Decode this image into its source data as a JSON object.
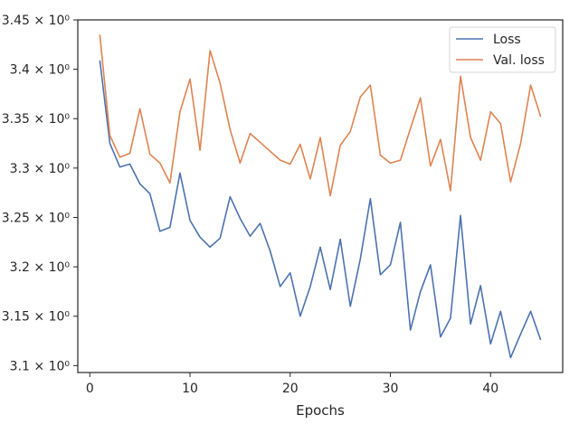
{
  "chart_data": {
    "type": "line",
    "title": "",
    "xlabel": "Epochs",
    "ylabel": "",
    "xlim": [
      -1.2,
      47.2
    ],
    "ylim": [
      3.093,
      3.45
    ],
    "xticks": [
      0,
      10,
      20,
      30,
      40
    ],
    "xtick_labels": [
      "0",
      "10",
      "20",
      "30",
      "40"
    ],
    "yticks": [
      3.1,
      3.15,
      3.2,
      3.25,
      3.3,
      3.35,
      3.4,
      3.45
    ],
    "ytick_labels": [
      "3.1 × 10⁰",
      "3.15 × 10⁰",
      "3.2 × 10⁰",
      "3.25 × 10⁰",
      "3.3 × 10⁰",
      "3.35 × 10⁰",
      "3.4 × 10⁰",
      "3.45 × 10⁰"
    ],
    "grid": false,
    "legend_position": "top-right",
    "x": [
      1,
      2,
      3,
      4,
      5,
      6,
      7,
      8,
      9,
      10,
      11,
      12,
      13,
      14,
      15,
      16,
      17,
      18,
      19,
      20,
      21,
      22,
      23,
      24,
      25,
      26,
      27,
      28,
      29,
      30,
      31,
      32,
      33,
      34,
      35,
      36,
      37,
      38,
      39,
      40,
      41,
      42,
      43,
      44,
      45
    ],
    "series": [
      {
        "name": "Loss",
        "color": "#4c72b0",
        "values": [
          3.409,
          3.325,
          3.301,
          3.304,
          3.284,
          3.274,
          3.236,
          3.24,
          3.295,
          3.247,
          3.23,
          3.22,
          3.229,
          3.271,
          3.249,
          3.231,
          3.244,
          3.216,
          3.18,
          3.194,
          3.15,
          3.18,
          3.22,
          3.177,
          3.228,
          3.16,
          3.208,
          3.269,
          3.192,
          3.202,
          3.245,
          3.136,
          3.175,
          3.202,
          3.129,
          3.148,
          3.252,
          3.142,
          3.181,
          3.122,
          3.155,
          3.108,
          3.132,
          3.155,
          3.126
        ]
      },
      {
        "name": "Val. loss",
        "color": "#dd8452",
        "values": [
          3.435,
          3.333,
          3.311,
          3.315,
          3.36,
          3.314,
          3.305,
          3.285,
          3.357,
          3.39,
          3.318,
          3.419,
          3.386,
          3.339,
          3.305,
          3.335,
          3.326,
          3.317,
          3.308,
          3.304,
          3.324,
          3.289,
          3.331,
          3.272,
          3.323,
          3.337,
          3.372,
          3.384,
          3.313,
          3.305,
          3.308,
          3.34,
          3.371,
          3.302,
          3.329,
          3.277,
          3.393,
          3.331,
          3.308,
          3.357,
          3.345,
          3.286,
          3.325,
          3.384,
          3.352
        ]
      }
    ]
  }
}
